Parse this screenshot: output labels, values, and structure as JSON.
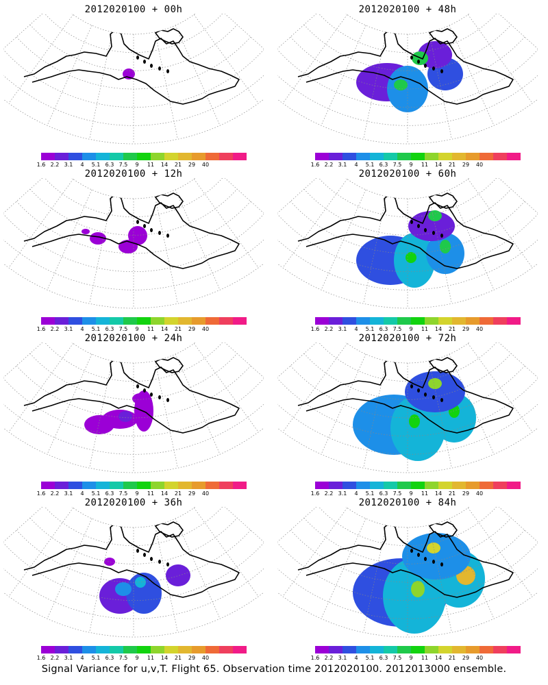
{
  "panels": [
    {
      "title": "2012020100 + 00h",
      "lead": 0
    },
    {
      "title": "2012020100 + 48h",
      "lead": 48
    },
    {
      "title": "2012020100 + 12h",
      "lead": 12
    },
    {
      "title": "2012020100 + 60h",
      "lead": 60
    },
    {
      "title": "2012020100 + 24h",
      "lead": 24
    },
    {
      "title": "2012020100 + 72h",
      "lead": 72
    },
    {
      "title": "2012020100 + 36h",
      "lead": 36
    },
    {
      "title": "2012020100 + 84h",
      "lead": 84
    }
  ],
  "colorbar": {
    "labels": [
      "1.6",
      "2.2",
      "3.1",
      "4",
      "5.1",
      "6.3",
      "7.5",
      "9",
      "11",
      "14",
      "21",
      "29",
      "40"
    ],
    "colors": [
      "#9b00d6",
      "#6a1fd9",
      "#2f4fe0",
      "#1d8fe8",
      "#14b4d8",
      "#14c9a8",
      "#1fc94b",
      "#12d30f",
      "#8ed52c",
      "#d3d42d",
      "#e2b72f",
      "#e79b2c",
      "#ef6a37",
      "#ef3f5d",
      "#f11b87"
    ]
  },
  "caption": "Signal Variance for u,v,T. Flight 65. Observation time 2012020100. 2012013000 ensemble."
}
